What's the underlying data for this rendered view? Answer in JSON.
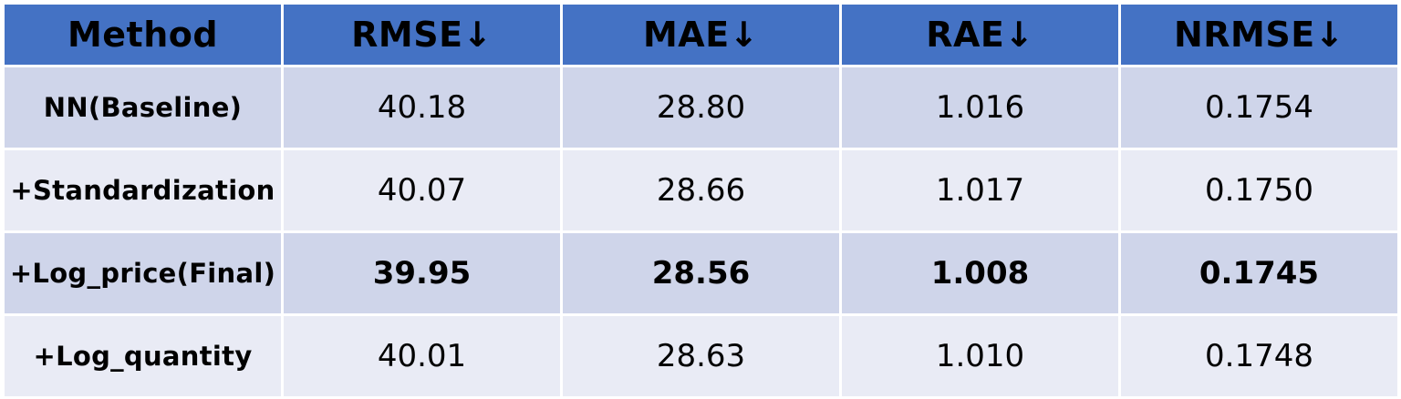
{
  "table": {
    "headers": [
      "Method",
      "RMSE↓",
      "MAE↓",
      "RAE↓",
      "NRMSE↓"
    ],
    "rows": [
      {
        "method": "NN(Baseline)",
        "rmse": "40.18",
        "mae": "28.80",
        "rae": "1.016",
        "nrmse": "0.1754"
      },
      {
        "method": "+Standardization",
        "rmse": "40.07",
        "mae": "28.66",
        "rae": "1.017",
        "nrmse": "0.1750"
      },
      {
        "method": "+Log_price(Final)",
        "rmse": "39.95",
        "mae": "28.56",
        "rae": "1.008",
        "nrmse": "0.1745"
      },
      {
        "method": "+Log_quantity",
        "rmse": "40.01",
        "mae": "28.63",
        "rae": "1.010",
        "nrmse": "0.1748"
      }
    ],
    "colors": {
      "header_bg": "#4472c4",
      "row_odd_bg": "#cfd5ea",
      "row_even_bg": "#e9ebf5",
      "border": "#ffffff"
    }
  }
}
